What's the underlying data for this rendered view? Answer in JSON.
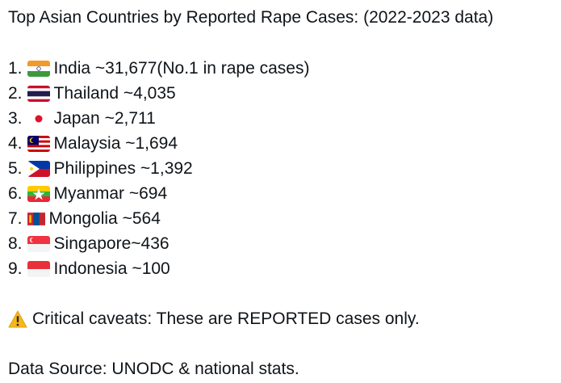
{
  "title": "Top Asian Countries by Reported Rape Cases: (2022-2023 data)",
  "items": [
    {
      "number": "1.",
      "text": "India ~31,677(No.1 in rape cases)"
    },
    {
      "number": "2.",
      "text": "Thailand ~4,035"
    },
    {
      "number": "3.",
      "text": "Japan ~2,711"
    },
    {
      "number": "4.",
      "text": "Malaysia ~1,694"
    },
    {
      "number": "5.",
      "text": "Philippines ~1,392"
    },
    {
      "number": "6.",
      "text": "Myanmar ~694"
    },
    {
      "number": "7.",
      "text": "Mongolia ~564"
    },
    {
      "number": "8.",
      "text": "Singapore~436"
    },
    {
      "number": "9.",
      "text": "Indonesia ~100"
    }
  ],
  "caveat": "Critical caveats: These are REPORTED cases only.",
  "source": "Data Source: UNODC & national stats."
}
